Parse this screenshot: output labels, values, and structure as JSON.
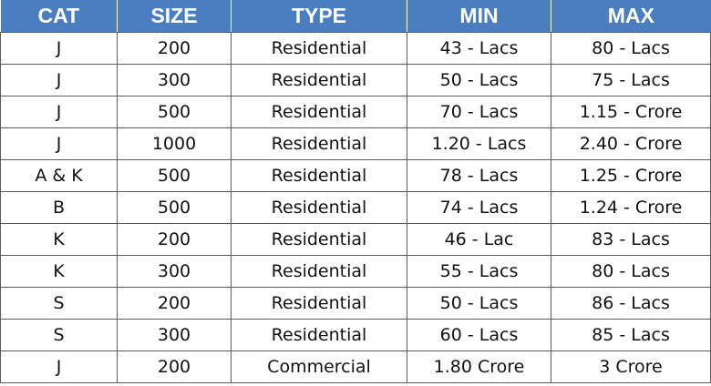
{
  "table": {
    "headers": [
      "CAT",
      "SIZE",
      "TYPE",
      "MIN",
      "MAX"
    ],
    "rows": [
      [
        "J",
        "200",
        "Residential",
        "43 - Lacs",
        "80 - Lacs"
      ],
      [
        "J",
        "300",
        "Residential",
        "50 - Lacs",
        "75 - Lacs"
      ],
      [
        "J",
        "500",
        "Residential",
        "70 - Lacs",
        "1.15 - Crore"
      ],
      [
        "J",
        "1000",
        "Residential",
        "1.20 - Lacs",
        "2.40 - Crore"
      ],
      [
        "A & K",
        "500",
        "Residential",
        "78 - Lacs",
        "1.25 - Crore"
      ],
      [
        "B",
        "500",
        "Residential",
        "74 - Lacs",
        "1.24 - Crore"
      ],
      [
        "K",
        "200",
        "Residential",
        "46 - Lac",
        "83 - Lacs"
      ],
      [
        "K",
        "300",
        "Residential",
        "55 - Lacs",
        "80 - Lacs"
      ],
      [
        "S",
        "200",
        "Residential",
        "50 - Lacs",
        "86 - Lacs"
      ],
      [
        "S",
        "300",
        "Residential",
        "60 - Lacs",
        "85 - Lacs"
      ],
      [
        "J",
        "200",
        "Commercial",
        "1.80 Crore",
        "3 Crore"
      ]
    ]
  },
  "colors": {
    "header_background": "#4a7ec0",
    "header_text": "#ffffff",
    "grid_lines": "#5b5b5b"
  }
}
